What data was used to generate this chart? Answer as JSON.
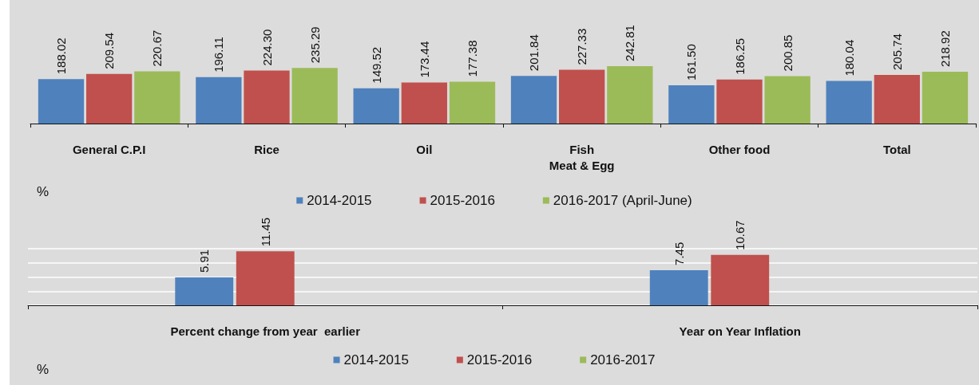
{
  "chart_data": [
    {
      "type": "bar",
      "categories": [
        "General C.P.I",
        "Rice",
        "Oil",
        "Fish\nMeat & Egg",
        "Other food",
        "Total"
      ],
      "series": [
        {
          "name": "2014-2015",
          "color": "#4f81bd",
          "values": [
            188.02,
            196.11,
            149.52,
            201.84,
            161.5,
            180.04
          ],
          "value_labels": [
            "188.02",
            "196.11",
            "149.52",
            "201.84",
            "161.50",
            "180.04"
          ]
        },
        {
          "name": "2015-2016",
          "color": "#c0504d",
          "values": [
            209.54,
            224.3,
            173.44,
            227.33,
            186.25,
            205.74
          ],
          "value_labels": [
            "209.54",
            "224.30",
            "173.44",
            "227.33",
            "186.25",
            "205.74"
          ]
        },
        {
          "name": "2016-2017 (April-June)",
          "color": "#9bbb59",
          "values": [
            220.67,
            235.29,
            177.38,
            242.81,
            200.85,
            218.92
          ],
          "value_labels": [
            "220.67",
            "235.29",
            "177.38",
            "242.81",
            "200.85",
            "218.92"
          ]
        }
      ],
      "tick_labels": "x",
      "legend": "bottom",
      "annotations": [
        "%"
      ]
    },
    {
      "type": "bar",
      "categories": [
        "Percent change from year  earlier",
        "Year on Year Inflation"
      ],
      "series": [
        {
          "name": "2014-2015",
          "color": "#4f81bd",
          "values": [
            5.91,
            7.45
          ]
        },
        {
          "name": "2015-2016",
          "color": "#c0504d",
          "values": [
            11.45,
            10.67
          ]
        },
        {
          "name": "2016-2017",
          "color": "#9bbb59",
          "values": [
            null,
            null
          ]
        }
      ],
      "ylim": [
        0,
        12
      ],
      "yticks": [
        {
          "value": 0,
          "label": null
        },
        {
          "value": 3,
          "label": null
        },
        {
          "value": 6,
          "label": null
        },
        {
          "value": 9,
          "label": null
        },
        {
          "value": 12,
          "label": null
        }
      ],
      "grid": "y",
      "tick_labels": "x",
      "data_labels": true,
      "legend": "bottom",
      "annotations": [
        "%"
      ]
    }
  ]
}
